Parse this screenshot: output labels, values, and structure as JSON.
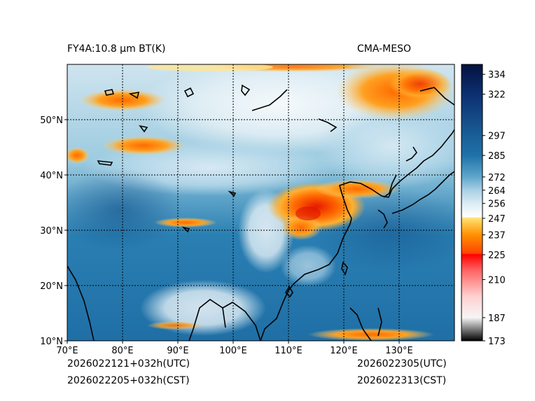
{
  "title_left": "FY4A:10.8 µm BT(K)",
  "title_right": "CMA-MESO",
  "footer": {
    "init_utc": "2026022121+032h(UTC)",
    "init_cst": "2026022205+032h(CST)",
    "valid_utc": "2026022305(UTC)",
    "valid_cst": "2026022313(CST)"
  },
  "map": {
    "lon_range": [
      70,
      140
    ],
    "lat_range": [
      10,
      60
    ],
    "lon_labels": [
      "70°E",
      "80°E",
      "90°E",
      "100°E",
      "110°E",
      "120°E",
      "130°E"
    ],
    "lat_labels": [
      "10°N",
      "20°N",
      "30°N",
      "40°N",
      "50°N"
    ],
    "gridline_lons": [
      80,
      90,
      100,
      110,
      120,
      130
    ],
    "gridline_lats": [
      20,
      30,
      40,
      50
    ]
  },
  "colorbar": {
    "min": 173,
    "max": 340,
    "tick_values": [
      173,
      187,
      210,
      225,
      237,
      247,
      256,
      264,
      272,
      285,
      297,
      322,
      334
    ],
    "tick_labels": [
      "173",
      "187",
      "210",
      "225",
      "237",
      "247",
      "256",
      "264",
      "272",
      "285",
      "297",
      "322",
      "334"
    ],
    "stops": [
      {
        "v": 173,
        "c": "#000000"
      },
      {
        "v": 187,
        "c": "#f5f5f5"
      },
      {
        "v": 200,
        "c": "#ffd0d0"
      },
      {
        "v": 216,
        "c": "#ff6060"
      },
      {
        "v": 225,
        "c": "#ff0000"
      },
      {
        "v": 226,
        "c": "#ff4500"
      },
      {
        "v": 237,
        "c": "#ff9000"
      },
      {
        "v": 247,
        "c": "#ffe070"
      },
      {
        "v": 248,
        "c": "#ffffff"
      },
      {
        "v": 256,
        "c": "#dcecf4"
      },
      {
        "v": 264,
        "c": "#a9d0e4"
      },
      {
        "v": 272,
        "c": "#5ea6cc"
      },
      {
        "v": 285,
        "c": "#1e72a8"
      },
      {
        "v": 297,
        "c": "#1a5e96"
      },
      {
        "v": 322,
        "c": "#0c2f70"
      },
      {
        "v": 340,
        "c": "#04123f"
      }
    ]
  }
}
